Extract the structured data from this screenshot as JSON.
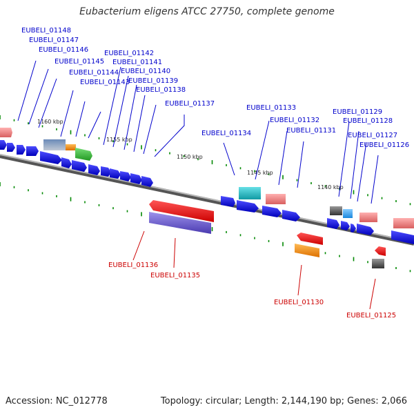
{
  "title": "Eubacterium eligens ATCC 27750, complete genome",
  "footer": {
    "accession": "Accession: NC_012778",
    "topology": "Topology: circular; Length: 2,144,190 bp; Genes: 2,066"
  },
  "tick_labels": [
    "1160 kbp",
    "1155 kbp",
    "1150 kbp",
    "1145 kbp",
    "1140 kbp"
  ],
  "top_gene_labels": [
    "EUBELI_01148",
    "EUBELI_01147",
    "EUBELI_01146",
    "EUBELI_01145",
    "EUBELI_01144",
    "EUBELI_01143",
    "EUBELI_01142",
    "EUBELI_01141",
    "EUBELI_01140",
    "EUBELI_01139",
    "EUBELI_01138",
    "EUBELI_01137",
    "EUBELI_01133",
    "EUBELI_01132",
    "EUBELI_01131",
    "EUBELI_01134",
    "EUBELI_01129",
    "EUBELI_01128",
    "EUBELI_01127",
    "EUBELI_01126"
  ],
  "bottom_gene_labels": [
    "EUBELI_01136",
    "EUBELI_01135",
    "EUBELI_01130",
    "EUBELI_01125"
  ],
  "colors": {
    "forward_label": "#0000cc",
    "reverse_label": "#cc0000",
    "backbone": "#888888",
    "tick": "#008800",
    "blue_gene": "#0000ee",
    "red_gene": "#ee0000",
    "salmon_gene": "#f08080",
    "cyan_gene": "#22c4cc",
    "purple_gene": "#6a5acd",
    "orange_gene": "#ff8c00",
    "gray_gene": "#555555",
    "green_gene": "#33bb33",
    "sky_gene": "#22aaee"
  }
}
